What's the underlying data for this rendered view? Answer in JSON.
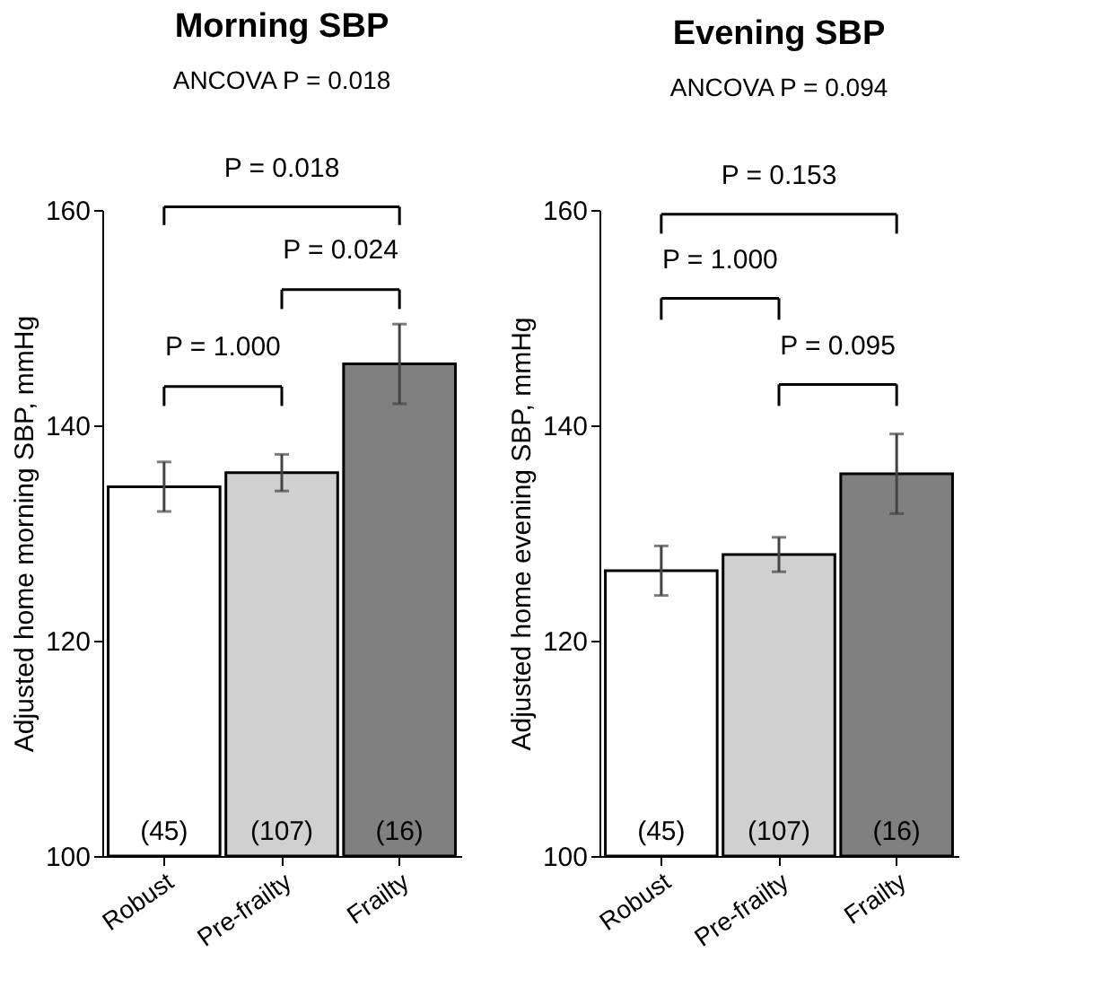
{
  "chart_data": [
    {
      "type": "bar",
      "title": "Morning SBP",
      "subtitle": "ANCOVA P = 0.018",
      "ylabel": "Adjusted home morning SBP, mmHg",
      "categories": [
        "Robust",
        "Pre-frailty",
        "Frailty"
      ],
      "values": [
        134.3,
        135.6,
        145.7
      ],
      "errors": [
        2.3,
        1.7,
        3.7
      ],
      "colors": [
        "#ffffff",
        "#d0d0d0",
        "#808080"
      ],
      "ylim": [
        100,
        160
      ],
      "yticks": [
        100,
        120,
        140,
        160
      ],
      "grid": false,
      "annotations": [
        "P = 0.018",
        "P = 0.024",
        "P = 1.000",
        "(45)",
        "(107)",
        "(16)"
      ]
    },
    {
      "type": "bar",
      "title": "Evening SBP",
      "subtitle": "ANCOVA P = 0.094",
      "ylabel": "Adjusted home evening SBP, mmHg",
      "categories": [
        "Robust",
        "Pre-frailty",
        "Frailty"
      ],
      "values": [
        126.5,
        128.0,
        135.5
      ],
      "errors": [
        2.3,
        1.6,
        3.7
      ],
      "colors": [
        "#ffffff",
        "#d0d0d0",
        "#808080"
      ],
      "ylim": [
        100,
        160
      ],
      "yticks": [
        100,
        120,
        140,
        160
      ],
      "grid": false,
      "annotations": [
        "P = 0.153",
        "P = 1.000",
        "P = 0.095",
        "(45)",
        "(107)",
        "(16)"
      ]
    }
  ]
}
